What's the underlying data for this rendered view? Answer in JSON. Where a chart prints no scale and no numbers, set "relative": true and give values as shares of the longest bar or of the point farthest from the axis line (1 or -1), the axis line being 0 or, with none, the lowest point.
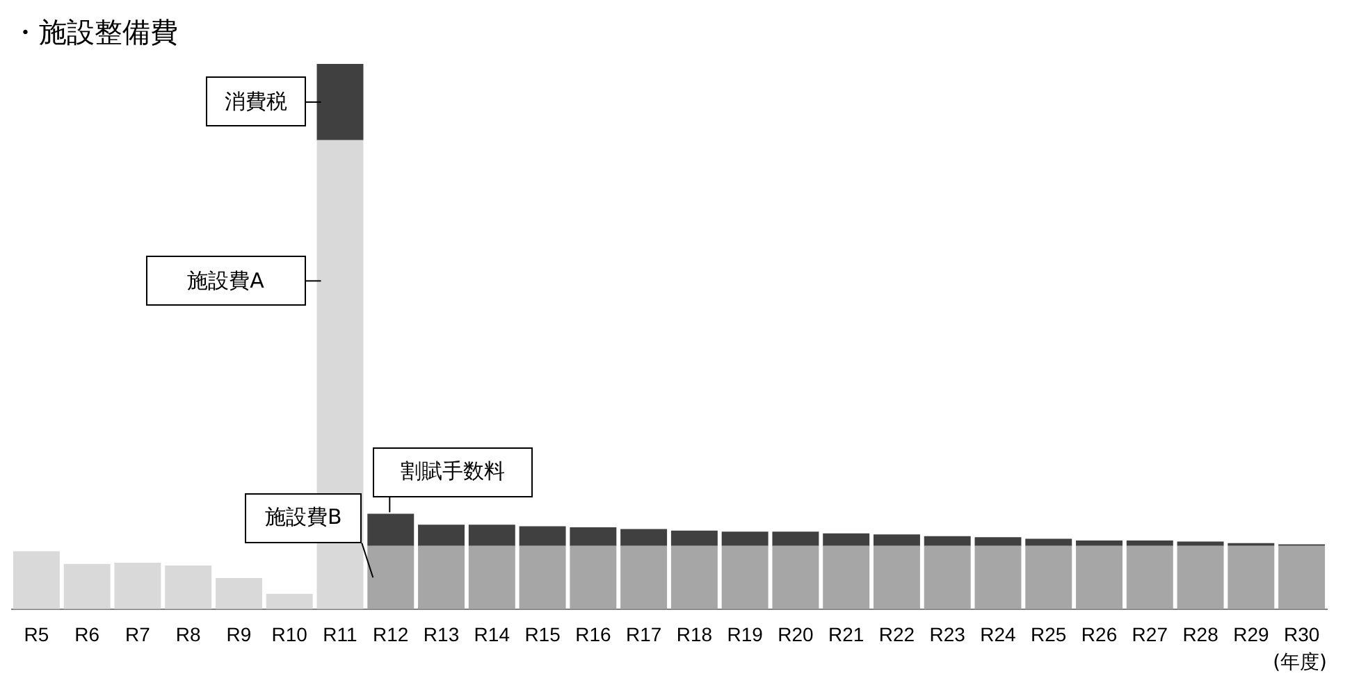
{
  "chart_data": {
    "type": "bar",
    "title": "・施設整備費",
    "xlabel": "(年度)",
    "relative": true,
    "stacked": true,
    "legend": false,
    "grid": false,
    "categories": [
      "R5",
      "R6",
      "R7",
      "R8",
      "R9",
      "R10",
      "R11",
      "R12",
      "R13",
      "R14",
      "R15",
      "R16",
      "R17",
      "R18",
      "R19",
      "R20",
      "R21",
      "R22",
      "R23",
      "R24",
      "R25",
      "R26",
      "R27",
      "R28",
      "R29",
      "R30"
    ],
    "series": [
      {
        "name": "施設費A",
        "color": "#d9d9d9",
        "values": [
          0.106,
          0.083,
          0.085,
          0.08,
          0.057,
          0.028,
          0.86,
          null,
          null,
          null,
          null,
          null,
          null,
          null,
          null,
          null,
          null,
          null,
          null,
          null,
          null,
          null,
          null,
          null,
          null,
          null
        ]
      },
      {
        "name": "消費税",
        "color": "#404040",
        "values": [
          null,
          null,
          null,
          null,
          null,
          null,
          0.14,
          null,
          null,
          null,
          null,
          null,
          null,
          null,
          null,
          null,
          null,
          null,
          null,
          null,
          null,
          null,
          null,
          null,
          null,
          null
        ]
      },
      {
        "name": "施設費B",
        "color": "#a6a6a6",
        "values": [
          null,
          null,
          null,
          null,
          null,
          null,
          null,
          0.116,
          0.116,
          0.116,
          0.116,
          0.116,
          0.116,
          0.116,
          0.116,
          0.116,
          0.116,
          0.116,
          0.116,
          0.116,
          0.116,
          0.116,
          0.116,
          0.116,
          0.116,
          0.116
        ]
      },
      {
        "name": "割賦手数料",
        "color": "#404040",
        "values": [
          null,
          null,
          null,
          null,
          null,
          null,
          null,
          0.059,
          0.039,
          0.039,
          0.036,
          0.034,
          0.031,
          0.028,
          0.026,
          0.026,
          0.023,
          0.021,
          0.018,
          0.016,
          0.013,
          0.01,
          0.01,
          0.008,
          0.005,
          0.003
        ]
      }
    ]
  }
}
